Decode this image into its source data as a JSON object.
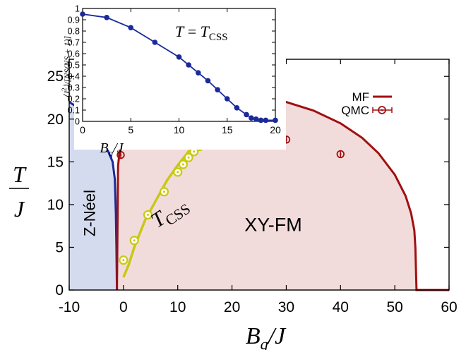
{
  "chart_data": [
    {
      "type": "area",
      "xlabel": "B_q/J",
      "ylabel": "T/J",
      "xlim": [
        -10,
        60
      ],
      "ylim": [
        0,
        27
      ],
      "xticks": [
        -10,
        0,
        10,
        20,
        30,
        40,
        50,
        60
      ],
      "yticks": [
        0,
        5,
        10,
        15,
        20,
        25
      ],
      "legend": {
        "placement": "top-right",
        "entries": [
          {
            "label": "MF",
            "marker": "line",
            "color": "#a01010"
          },
          {
            "label": "QMC",
            "marker": "circle-errorbar",
            "color": "#a01010"
          }
        ]
      },
      "regions": [
        {
          "label": "Z-Néel",
          "color": "#d5dbef"
        },
        {
          "label": "XY-FM",
          "color": "#f2dcdb"
        }
      ],
      "curve_label": "T_CSS",
      "series": [
        {
          "name": "MF",
          "role": "XY-FM boundary",
          "color": "#a01010",
          "x": [
            -1.2,
            -1.0,
            -0.5,
            0,
            1,
            2,
            4,
            6,
            8,
            10,
            12,
            15,
            18,
            20,
            25,
            30,
            35,
            40,
            44,
            47,
            50,
            52,
            53,
            53.6,
            53.8,
            54,
            60
          ],
          "y": [
            0,
            14.5,
            17.5,
            18.8,
            20.2,
            21.2,
            22.3,
            22.9,
            23.2,
            23.3,
            23.3,
            23.3,
            23.2,
            23.1,
            22.7,
            22.0,
            21.0,
            19.5,
            17.8,
            16.0,
            13.5,
            11.0,
            9.0,
            7.0,
            5.0,
            0,
            0
          ]
        },
        {
          "role": "Z-Neel boundary",
          "color": "#1a2a9a",
          "x": [
            -10,
            -8,
            -6,
            -4,
            -3,
            -2,
            -1.6,
            -1.4,
            -1.3,
            -1.2
          ],
          "y": [
            22.0,
            21.2,
            19.8,
            17.7,
            16.5,
            15.0,
            13.0,
            9.0,
            5.0,
            0
          ]
        },
        {
          "role": "T_CSS curve",
          "color": "#c8c814",
          "x": [
            0,
            1,
            2,
            4,
            6,
            8,
            10,
            12,
            14,
            16,
            18,
            19,
            20,
            21
          ],
          "y": [
            1.5,
            3.0,
            5.0,
            8.2,
            10.5,
            12.8,
            14.6,
            16.2,
            17.6,
            19.0,
            20.5,
            21.6,
            23.5,
            26.0
          ]
        },
        {
          "role": "T_CSS QMC",
          "color": "#c8c814",
          "x": [
            0,
            2,
            4.5,
            7.5,
            10,
            11,
            12,
            13,
            14,
            15,
            16,
            17,
            18,
            19,
            20
          ],
          "y": [
            3.5,
            5.8,
            8.8,
            11.5,
            13.8,
            14.7,
            15.5,
            16.2,
            16.8,
            17.4,
            18.0,
            19.0,
            20.2,
            21.8,
            24.0
          ]
        },
        {
          "name": "QMC",
          "role": "XY-FM boundary QMC",
          "color": "#a01010",
          "x": [
            -0.5,
            2,
            4.5,
            10,
            12,
            15,
            17,
            17.5,
            18,
            18.5,
            20,
            25,
            30,
            40
          ],
          "y": [
            15.8,
            18.7,
            19.9,
            20.6,
            20.5,
            20.3,
            20.1,
            20.0,
            19.9,
            19.8,
            19.6,
            18.8,
            17.6,
            15.9
          ]
        }
      ],
      "text": {
        "x_ticks": [
          "-10",
          "0",
          "10",
          "20",
          "30",
          "40",
          "50",
          "60"
        ],
        "y_ticks": [
          "0",
          "5",
          "10",
          "15",
          "20",
          "25"
        ],
        "region_labels": [
          "Z-Néel",
          "XY-FM"
        ],
        "legend_mf": "MF",
        "legend_qmc": "QMC"
      }
    },
    {
      "type": "line",
      "annotation": "T = T_CSS",
      "xlabel": "B_q/J",
      "ylabel": "⟨J²⟩/[NS(NS+1)]",
      "xlim": [
        0,
        20
      ],
      "ylim": [
        0,
        1
      ],
      "xticks": [
        0,
        5,
        10,
        15,
        20
      ],
      "yticks": [
        0,
        0.1,
        0.2,
        0.3,
        0.4,
        0.5,
        0.6,
        0.7,
        0.8,
        0.9,
        1
      ],
      "series": [
        {
          "color": "#1a2a9a",
          "x": [
            0,
            2.5,
            5,
            7.5,
            10,
            11,
            12,
            13,
            14,
            15,
            16,
            17,
            17.5,
            18,
            18.5,
            19,
            20
          ],
          "y": [
            0.95,
            0.92,
            0.83,
            0.7,
            0.57,
            0.5,
            0.43,
            0.36,
            0.28,
            0.2,
            0.12,
            0.06,
            0.03,
            0.02,
            0.01,
            0.01,
            0.01
          ]
        }
      ],
      "text": {
        "x_ticks": [
          "0",
          "5",
          "10",
          "15",
          "20"
        ],
        "y_ticks": [
          "0",
          "0.1",
          "0.2",
          "0.3",
          "0.4",
          "0.5",
          "0.6",
          "0.7",
          "0.8",
          "0.9",
          "1"
        ]
      }
    }
  ]
}
